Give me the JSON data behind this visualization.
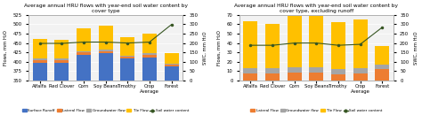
{
  "categories": [
    "Alfalfa",
    "Red Clover",
    "Corn",
    "Soy Beans",
    "Timothy",
    "Crop\nAverage",
    "Forest"
  ],
  "left": {
    "title": "Average annual HRU flows with year-end soil water content by\ncover type",
    "surface_runoff": [
      398,
      398,
      418,
      422,
      408,
      412,
      388
    ],
    "lateral_flow": [
      6,
      6,
      7,
      7,
      5,
      6,
      4
    ],
    "groundwater": [
      4,
      4,
      4,
      4,
      4,
      4,
      3
    ],
    "tile_flow": [
      52,
      50,
      60,
      62,
      48,
      53,
      28
    ],
    "swc": [
      198,
      198,
      205,
      205,
      200,
      205,
      298
    ],
    "ylim": [
      350,
      525
    ],
    "yticks": [
      350,
      375,
      400,
      425,
      450,
      475,
      500,
      525
    ],
    "y2lim": [
      0,
      350
    ],
    "y2ticks": [
      0,
      50,
      100,
      150,
      200,
      250,
      300,
      350
    ],
    "ylabel": "Flows, mm H₂O",
    "y2label": "SWC, mm H₂O"
  },
  "right": {
    "title": "Average annual HRU flows with year-end soil water content by\ncover type, excluding runoff",
    "lateral_flow": [
      8,
      8,
      9,
      9,
      7,
      8,
      12
    ],
    "groundwater": [
      5,
      5,
      5,
      5,
      5,
      5,
      5
    ],
    "tile_flow": [
      50,
      47,
      55,
      55,
      50,
      52,
      20
    ],
    "swc": [
      188,
      188,
      200,
      200,
      188,
      193,
      283
    ],
    "ylim": [
      0,
      70
    ],
    "yticks": [
      0,
      10,
      20,
      30,
      40,
      50,
      60,
      70
    ],
    "y2lim": [
      0,
      350
    ],
    "y2ticks": [
      0,
      50,
      100,
      150,
      200,
      250,
      300,
      350
    ],
    "ylabel": "Flows, mm H₂O",
    "y2label": "SWC, mm H₂O"
  },
  "colors": {
    "surface_runoff": "#4472C4",
    "lateral_flow": "#ED7D31",
    "groundwater": "#A5A5A5",
    "tile_flow": "#FFC000",
    "swc_line": "#375623",
    "bg": "#F2F2F2"
  },
  "legend_left": [
    "Surface Runoff",
    "Lateral Flow",
    "Groundwater flow",
    "Tile Flow",
    "Soil water content"
  ],
  "legend_right": [
    "Lateral Flow",
    "Groundwater flow",
    "Tile Flow",
    "Soil water content"
  ]
}
